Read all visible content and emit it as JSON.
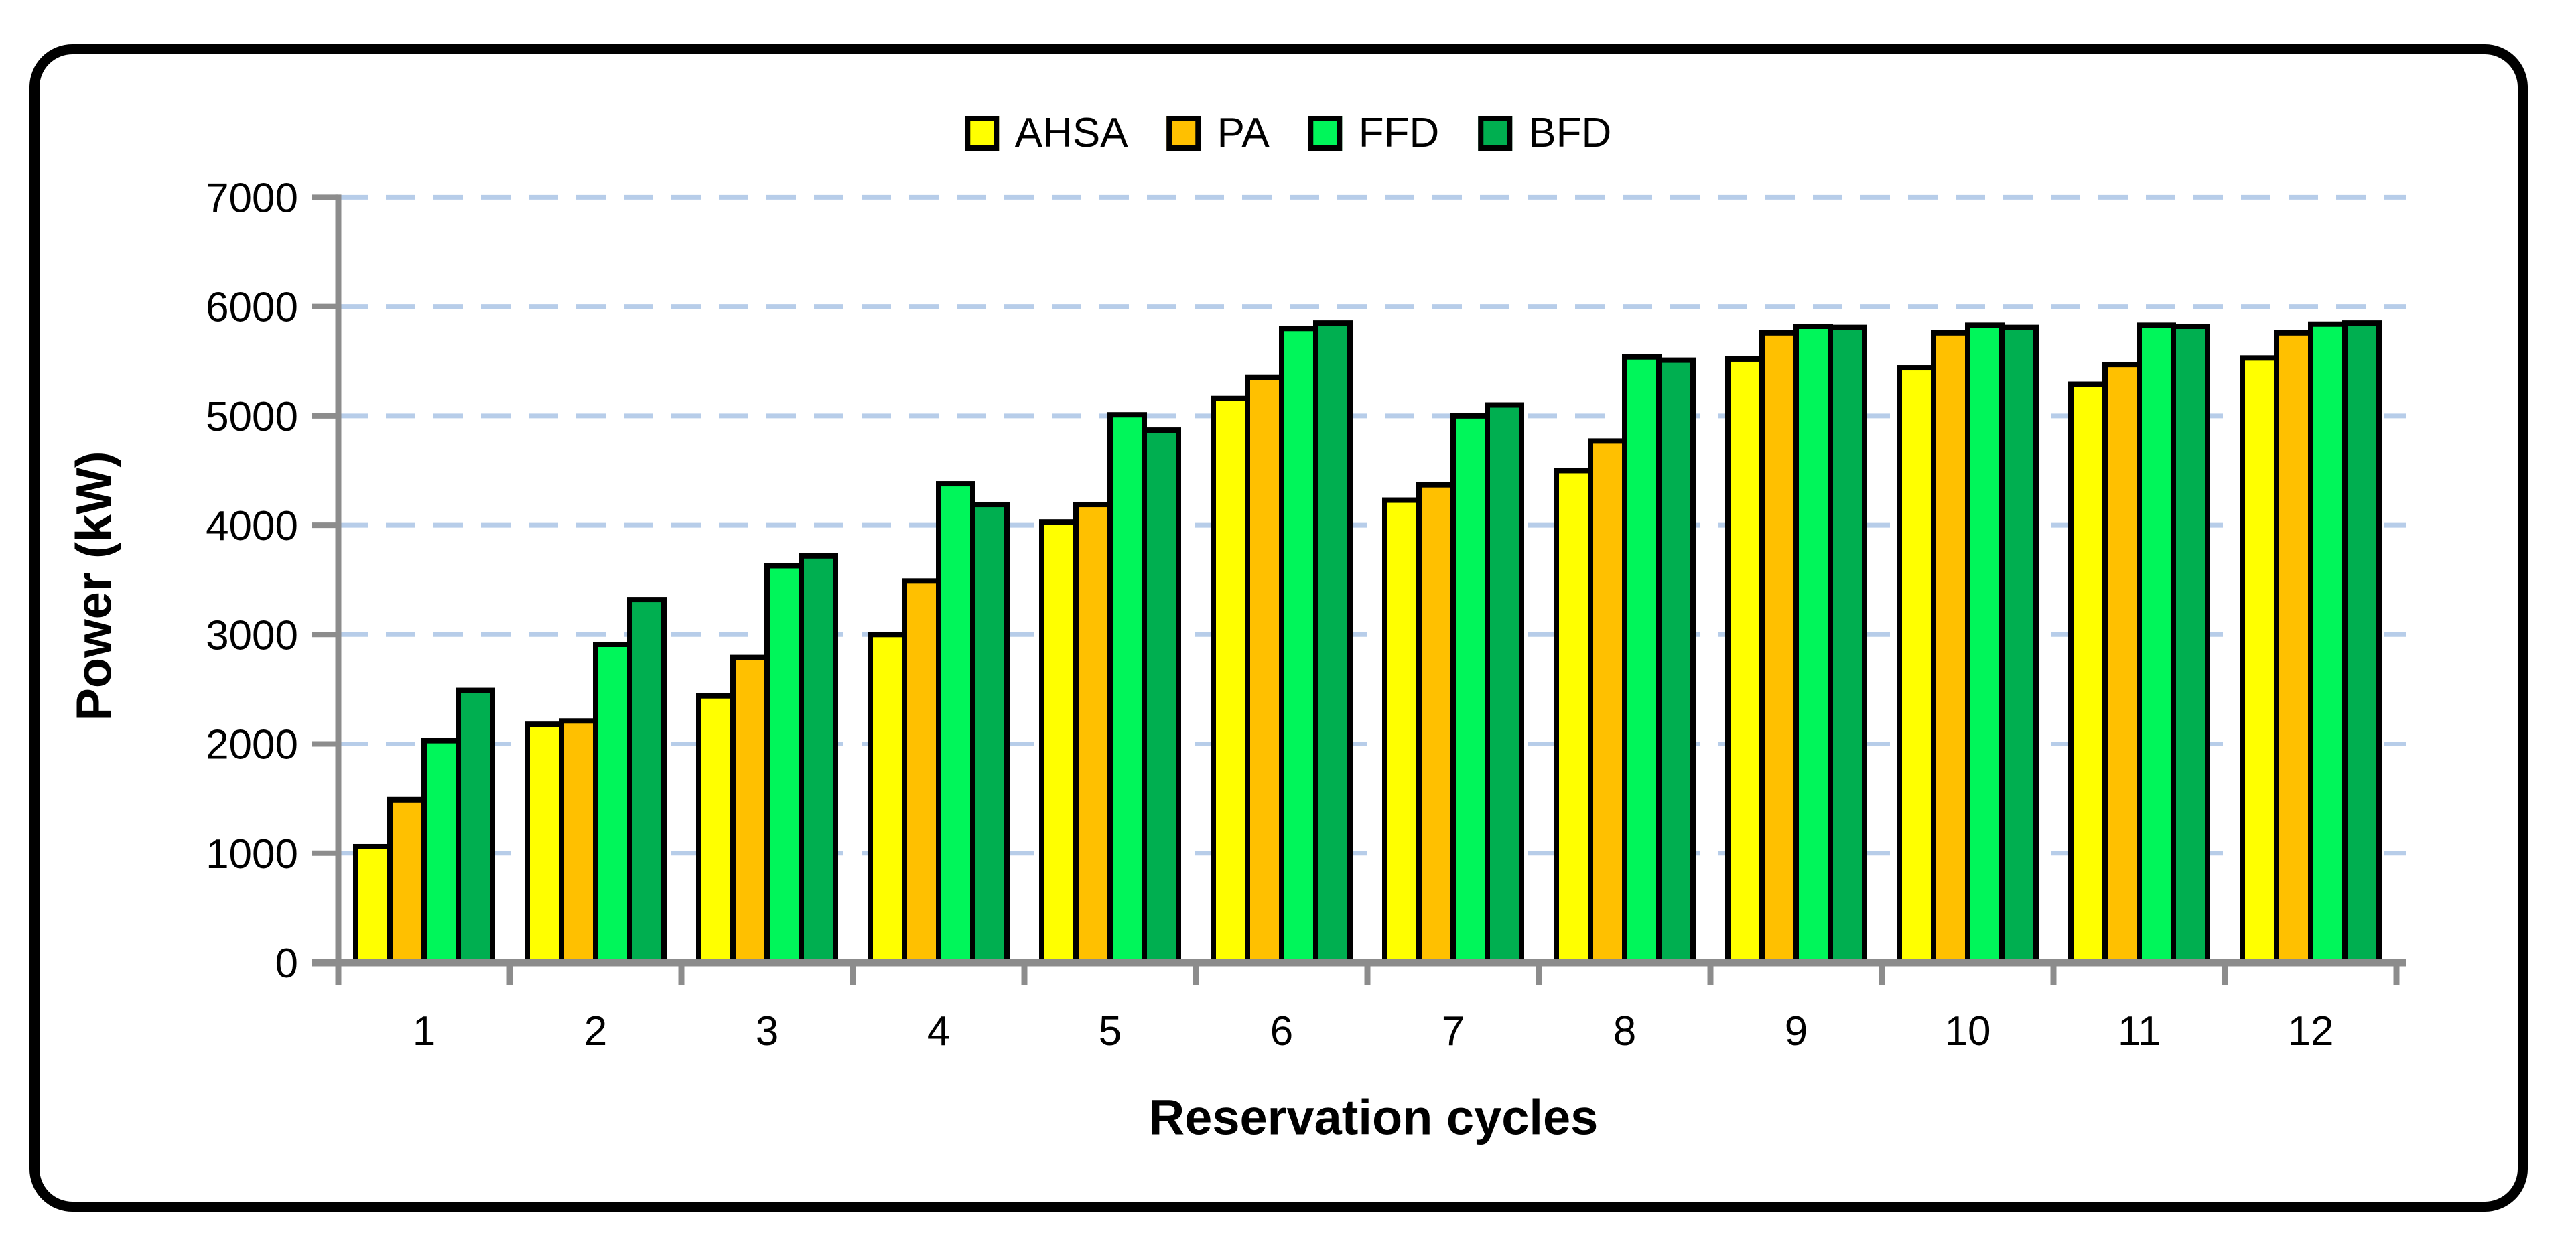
{
  "chart_data": {
    "type": "bar",
    "title": "",
    "xlabel": "Reservation cycles",
    "ylabel": "Power (kW)",
    "categories": [
      "1",
      "2",
      "3",
      "4",
      "5",
      "6",
      "7",
      "8",
      "9",
      "10",
      "11",
      "12"
    ],
    "series": [
      {
        "name": "AHSA",
        "color": "#FFFF00",
        "values": [
          1060,
          2180,
          2440,
          3000,
          4030,
          5160,
          4230,
          4500,
          5520,
          5440,
          5290,
          5530
        ]
      },
      {
        "name": "PA",
        "color": "#FFC000",
        "values": [
          1490,
          2210,
          2790,
          3490,
          4190,
          5350,
          4370,
          4770,
          5760,
          5760,
          5470,
          5760
        ]
      },
      {
        "name": "FFD",
        "color": "#00F65A",
        "values": [
          2030,
          2910,
          3630,
          4380,
          5010,
          5800,
          5000,
          5540,
          5820,
          5830,
          5830,
          5840
        ]
      },
      {
        "name": "BFD",
        "color": "#00AF50",
        "values": [
          2490,
          3320,
          3720,
          4190,
          4870,
          5850,
          5100,
          5510,
          5810,
          5810,
          5820,
          5850
        ]
      }
    ],
    "ylim": [
      0,
      7000
    ],
    "yticks": [
      0,
      1000,
      2000,
      3000,
      4000,
      5000,
      6000,
      7000
    ],
    "grid": "horizontal-dashed",
    "legend_position": "top-center"
  },
  "style": {
    "gridline_color": "#B7CDE9",
    "axis_color": "#8C8C8C",
    "bar_outline_color": "#000000",
    "frame_color": "#000000",
    "background_color": "#FFFFFF",
    "text_color": "#000000"
  }
}
